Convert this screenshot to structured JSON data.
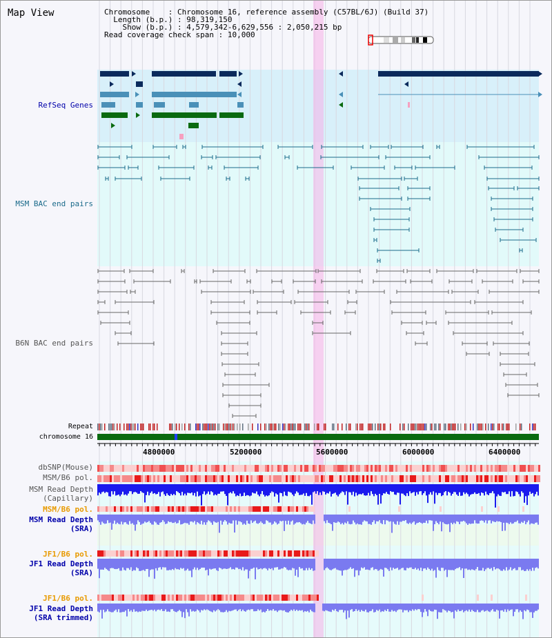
{
  "title": "Map View",
  "info": {
    "chromosome_label": "Chromosome",
    "chromosome_value": "Chromosome 16, reference assembly (C57BL/6J) (Build 37)",
    "length_label": "Length (b.p.)",
    "length_value": "98,319,150",
    "show_label": "Show (b.p.)",
    "show_value": "4,579,342-6,629,556 : 2,050,215 bp",
    "span_label": "Read coverage check span",
    "span_value": "10,000"
  },
  "tracks": {
    "refseq": "RefSeq Genes",
    "msm_bac": "MSM BAC end pairs",
    "b6n_bac": "B6N BAC end pairs",
    "repeat": "Repeat",
    "chromosome": "chromosome 16",
    "dbsnp": "dbSNP(Mouse)",
    "msm_b6_pol": "MSM/B6 pol.",
    "msm_depth_cap_1": "MSM Read Depth",
    "msm_depth_cap_2": "(Capillary)",
    "msm_b6_pol_sra": "MSM/B6 pol.",
    "msm_depth_sra_1": "MSM Read Depth",
    "msm_depth_sra_2": "(SRA)",
    "jf1_pol": "JF1/B6 pol.",
    "jf1_depth_1": "JF1 Read Depth",
    "jf1_depth_2": "(SRA)",
    "jf1_pol_trim": "JF1/B6 pol.",
    "jf1_trim_1": "JF1 Read Depth",
    "jf1_trim_2": "(SRA trimmed)"
  },
  "axis": {
    "ticks": [
      "4800000",
      "5200000",
      "5600000",
      "6000000",
      "6400000"
    ]
  },
  "colors": {
    "refseq_dark": "#0b2a5c",
    "refseq_mid": "#4a90b8",
    "refseq_green": "#0a6a10",
    "msm_line": "#1a6a8a",
    "b6n_line": "#666666",
    "depth_blue": "#1a1aee",
    "depth_light": "#7a7af0",
    "highlight": "#f6b0e8",
    "chrom_green": "#0a6a10"
  }
}
